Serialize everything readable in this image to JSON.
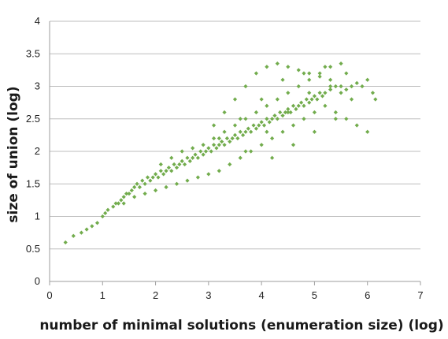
{
  "chart_data": {
    "type": "scatter",
    "title": "",
    "xlabel": "number of minimal solutions (enumeration size) (log)",
    "ylabel": "size of union (log)",
    "xlim": [
      0,
      7
    ],
    "ylim": [
      0,
      4
    ],
    "x_ticks": [
      "0",
      "1",
      "2",
      "3",
      "4",
      "5",
      "6",
      "7"
    ],
    "y_ticks": [
      "0",
      "0.5",
      "1",
      "1.5",
      "2",
      "2.5",
      "3",
      "3.5",
      "4"
    ],
    "grid": "horizontal",
    "legend": "none",
    "marker_color": "#72ac4d",
    "series": [
      {
        "values_x": [
          0.3,
          0.45,
          0.6,
          0.7,
          0.8,
          0.9,
          1.0,
          1.05,
          1.1,
          1.2,
          1.25,
          1.3,
          1.35,
          1.4,
          1.45,
          1.5,
          1.55,
          1.6,
          1.65,
          1.7,
          1.75,
          1.8,
          1.85,
          1.9,
          1.95,
          2.0,
          2.05,
          2.1,
          2.15,
          2.2,
          2.25,
          2.3,
          2.35,
          2.4,
          2.45,
          2.5,
          2.55,
          2.6,
          2.65,
          2.7,
          2.75,
          2.8,
          2.85,
          2.9,
          2.95,
          3.0,
          3.05,
          3.1,
          3.15,
          3.2,
          3.25,
          3.3,
          3.35,
          3.4,
          3.45,
          3.5,
          3.55,
          3.6,
          3.65,
          3.7,
          3.75,
          3.8,
          3.85,
          3.9,
          3.95,
          4.0,
          4.05,
          4.1,
          4.15,
          4.2,
          4.25,
          4.3,
          4.35,
          4.4,
          4.45,
          4.5,
          4.55,
          4.6,
          4.65,
          4.7,
          4.75,
          4.8,
          4.85,
          4.9,
          4.95,
          5.0,
          5.05,
          5.1,
          5.15,
          5.2,
          5.3,
          5.4,
          5.5,
          5.6,
          5.7,
          5.8,
          5.9,
          6.0,
          6.1,
          6.15,
          1.4,
          1.6,
          1.8,
          2.0,
          2.2,
          2.4,
          2.6,
          2.8,
          3.0,
          3.2,
          3.4,
          3.6,
          3.8,
          4.0,
          4.2,
          4.4,
          4.6,
          4.8,
          5.0,
          5.2,
          5.4,
          5.6,
          5.8,
          6.0,
          3.1,
          3.3,
          3.5,
          3.7,
          3.9,
          4.1,
          4.3,
          4.5,
          4.7,
          4.9,
          5.1,
          5.3,
          5.5,
          3.2,
          3.6,
          4.0,
          4.4,
          4.8,
          5.2,
          5.6,
          3.7,
          4.1,
          4.5,
          4.9,
          5.3,
          5.7,
          4.2,
          4.6,
          5.0,
          5.4,
          2.1,
          2.3,
          2.5,
          2.7,
          2.9,
          3.1,
          3.3,
          3.5,
          3.7,
          3.9,
          4.1,
          4.3,
          4.5,
          4.7,
          4.9,
          5.1,
          5.3,
          5.5
        ],
        "values_y": [
          0.6,
          0.7,
          0.75,
          0.8,
          0.85,
          0.9,
          1.0,
          1.05,
          1.1,
          1.15,
          1.2,
          1.2,
          1.25,
          1.3,
          1.35,
          1.35,
          1.4,
          1.45,
          1.5,
          1.45,
          1.55,
          1.5,
          1.6,
          1.55,
          1.6,
          1.65,
          1.6,
          1.7,
          1.65,
          1.7,
          1.75,
          1.7,
          1.8,
          1.75,
          1.8,
          1.85,
          1.8,
          1.9,
          1.85,
          1.9,
          1.95,
          1.9,
          2.0,
          1.95,
          2.0,
          2.05,
          2.0,
          2.1,
          2.05,
          2.1,
          2.15,
          2.1,
          2.2,
          2.15,
          2.2,
          2.25,
          2.2,
          2.3,
          2.25,
          2.3,
          2.35,
          2.3,
          2.4,
          2.35,
          2.4,
          2.45,
          2.4,
          2.5,
          2.45,
          2.5,
          2.55,
          2.5,
          2.6,
          2.55,
          2.6,
          2.65,
          2.6,
          2.7,
          2.65,
          2.7,
          2.75,
          2.7,
          2.8,
          2.75,
          2.8,
          2.85,
          2.8,
          2.9,
          2.85,
          2.9,
          2.95,
          3.0,
          2.9,
          2.95,
          3.0,
          3.05,
          3.0,
          3.1,
          2.9,
          2.8,
          1.2,
          1.3,
          1.35,
          1.4,
          1.45,
          1.5,
          1.55,
          1.6,
          1.65,
          1.7,
          1.8,
          1.9,
          2.0,
          2.1,
          2.2,
          2.3,
          2.4,
          2.5,
          2.6,
          2.7,
          2.6,
          2.5,
          2.4,
          2.3,
          2.4,
          2.6,
          2.8,
          3.0,
          3.2,
          3.3,
          3.35,
          3.3,
          3.25,
          3.2,
          3.15,
          3.1,
          3.0,
          2.2,
          2.5,
          2.8,
          3.1,
          3.2,
          3.3,
          3.2,
          2.0,
          2.3,
          2.6,
          2.9,
          3.0,
          2.8,
          1.9,
          2.1,
          2.3,
          2.5,
          1.8,
          1.9,
          2.0,
          2.05,
          2.1,
          2.2,
          2.3,
          2.4,
          2.5,
          2.6,
          2.7,
          2.8,
          2.9,
          3.0,
          3.1,
          3.2,
          3.3,
          3.35
        ]
      }
    ]
  }
}
